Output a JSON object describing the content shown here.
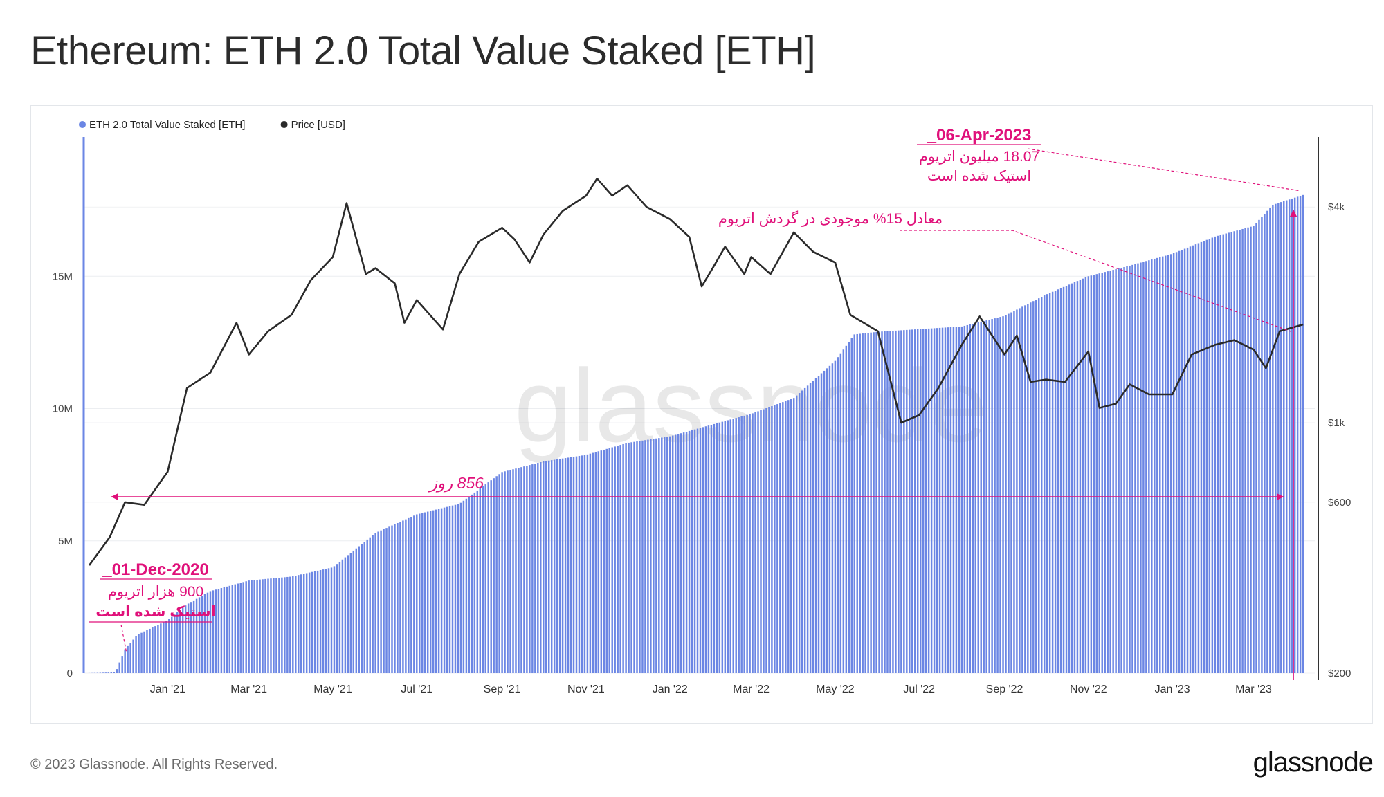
{
  "title": "Ethereum: ETH 2.0 Total Value Staked [ETH]",
  "footer": {
    "copyright": "© 2023 Glassnode. All Rights Reserved.",
    "logo": "glassnode"
  },
  "watermark": "glassnode",
  "colors": {
    "staked": "#6b86e4",
    "price": "#2a2a2a",
    "annotation": "#e0107a",
    "axis_left": "#6b86e4",
    "axis_right": "#333333"
  },
  "chart_data": {
    "type": "bar",
    "title": "Ethereum: ETH 2.0 Total Value Staked [ETH]",
    "legend": [
      {
        "name": "ETH 2.0 Total Value Staked [ETH]",
        "color": "#6b86e4"
      },
      {
        "name": "Price [USD]",
        "color": "#2a2a2a"
      }
    ],
    "legend_placement": "top-left",
    "x_range": [
      "2020-11-01",
      "2023-04-15"
    ],
    "x_ticks": [
      "Jan '21",
      "Mar '21",
      "May '21",
      "Jul '21",
      "Sep '21",
      "Nov '21",
      "Jan '22",
      "Mar '22",
      "May '22",
      "Jul '22",
      "Sep '22",
      "Nov '22",
      "Jan '23",
      "Mar '23"
    ],
    "x_tick_dates": [
      "2021-01-01",
      "2021-03-01",
      "2021-05-01",
      "2021-07-01",
      "2021-09-01",
      "2021-11-01",
      "2022-01-01",
      "2022-03-01",
      "2022-05-01",
      "2022-07-01",
      "2022-09-01",
      "2022-11-01",
      "2023-01-01",
      "2023-03-01"
    ],
    "y_left": {
      "min": 0,
      "max": 20000000,
      "ticks": [
        0,
        5000000,
        10000000,
        15000000
      ],
      "tick_labels": [
        "0",
        "5M",
        "10M",
        "15M"
      ]
    },
    "y_right": {
      "scale": "log",
      "min": 200,
      "max": 6000,
      "ticks": [
        200,
        600,
        1000,
        4000
      ],
      "tick_labels": [
        "$200",
        "$600",
        "$1k",
        "$4k"
      ]
    },
    "grid": true,
    "series": [
      {
        "name": "ETH 2.0 Total Value Staked [ETH]",
        "type": "bar",
        "axis": "left",
        "points": [
          [
            "2020-11-03",
            0
          ],
          [
            "2020-11-24",
            30000
          ],
          [
            "2020-12-01",
            900000
          ],
          [
            "2020-12-10",
            1450000
          ],
          [
            "2021-01-01",
            2000000
          ],
          [
            "2021-01-15",
            2600000
          ],
          [
            "2021-02-01",
            3100000
          ],
          [
            "2021-03-01",
            3500000
          ],
          [
            "2021-04-01",
            3650000
          ],
          [
            "2021-05-01",
            4000000
          ],
          [
            "2021-06-01",
            5300000
          ],
          [
            "2021-07-01",
            6000000
          ],
          [
            "2021-08-01",
            6400000
          ],
          [
            "2021-09-01",
            7600000
          ],
          [
            "2021-10-01",
            8000000
          ],
          [
            "2021-11-01",
            8250000
          ],
          [
            "2021-12-01",
            8700000
          ],
          [
            "2022-01-01",
            8950000
          ],
          [
            "2022-02-01",
            9400000
          ],
          [
            "2022-03-01",
            9800000
          ],
          [
            "2022-04-01",
            10400000
          ],
          [
            "2022-05-01",
            11800000
          ],
          [
            "2022-05-15",
            12800000
          ],
          [
            "2022-06-01",
            12900000
          ],
          [
            "2022-07-01",
            13000000
          ],
          [
            "2022-08-01",
            13100000
          ],
          [
            "2022-09-01",
            13500000
          ],
          [
            "2022-10-01",
            14300000
          ],
          [
            "2022-11-01",
            15000000
          ],
          [
            "2022-12-01",
            15400000
          ],
          [
            "2023-01-01",
            15850000
          ],
          [
            "2023-02-01",
            16500000
          ],
          [
            "2023-03-01",
            16900000
          ],
          [
            "2023-03-15",
            17700000
          ],
          [
            "2023-04-06",
            18070000
          ]
        ]
      },
      {
        "name": "Price [USD]",
        "type": "line",
        "axis": "right",
        "points": [
          [
            "2020-11-05",
            400
          ],
          [
            "2020-11-20",
            480
          ],
          [
            "2020-12-01",
            600
          ],
          [
            "2020-12-15",
            590
          ],
          [
            "2021-01-01",
            730
          ],
          [
            "2021-01-15",
            1250
          ],
          [
            "2021-02-01",
            1380
          ],
          [
            "2021-02-20",
            1900
          ],
          [
            "2021-03-01",
            1550
          ],
          [
            "2021-03-15",
            1800
          ],
          [
            "2021-04-01",
            2000
          ],
          [
            "2021-04-15",
            2500
          ],
          [
            "2021-05-01",
            2900
          ],
          [
            "2021-05-11",
            4100
          ],
          [
            "2021-05-25",
            2600
          ],
          [
            "2021-06-01",
            2700
          ],
          [
            "2021-06-15",
            2450
          ],
          [
            "2021-06-22",
            1900
          ],
          [
            "2021-07-01",
            2200
          ],
          [
            "2021-07-20",
            1820
          ],
          [
            "2021-08-01",
            2600
          ],
          [
            "2021-08-15",
            3200
          ],
          [
            "2021-09-01",
            3500
          ],
          [
            "2021-09-10",
            3250
          ],
          [
            "2021-09-21",
            2800
          ],
          [
            "2021-10-01",
            3350
          ],
          [
            "2021-10-15",
            3900
          ],
          [
            "2021-11-01",
            4300
          ],
          [
            "2021-11-09",
            4800
          ],
          [
            "2021-11-20",
            4300
          ],
          [
            "2021-12-01",
            4600
          ],
          [
            "2021-12-15",
            4000
          ],
          [
            "2022-01-01",
            3700
          ],
          [
            "2022-01-15",
            3300
          ],
          [
            "2022-01-24",
            2400
          ],
          [
            "2022-02-01",
            2700
          ],
          [
            "2022-02-10",
            3100
          ],
          [
            "2022-02-24",
            2600
          ],
          [
            "2022-03-01",
            2900
          ],
          [
            "2022-03-15",
            2600
          ],
          [
            "2022-04-01",
            3400
          ],
          [
            "2022-04-15",
            3000
          ],
          [
            "2022-05-01",
            2800
          ],
          [
            "2022-05-12",
            2000
          ],
          [
            "2022-06-01",
            1800
          ],
          [
            "2022-06-18",
            1000
          ],
          [
            "2022-07-01",
            1050
          ],
          [
            "2022-07-15",
            1250
          ],
          [
            "2022-08-01",
            1650
          ],
          [
            "2022-08-14",
            1980
          ],
          [
            "2022-09-01",
            1550
          ],
          [
            "2022-09-10",
            1750
          ],
          [
            "2022-09-20",
            1300
          ],
          [
            "2022-10-01",
            1320
          ],
          [
            "2022-10-15",
            1300
          ],
          [
            "2022-11-01",
            1580
          ],
          [
            "2022-11-09",
            1100
          ],
          [
            "2022-11-21",
            1130
          ],
          [
            "2022-12-01",
            1280
          ],
          [
            "2022-12-15",
            1200
          ],
          [
            "2023-01-01",
            1200
          ],
          [
            "2023-01-15",
            1550
          ],
          [
            "2023-02-01",
            1650
          ],
          [
            "2023-02-15",
            1700
          ],
          [
            "2023-03-01",
            1600
          ],
          [
            "2023-03-10",
            1420
          ],
          [
            "2023-03-20",
            1800
          ],
          [
            "2023-04-06",
            1880
          ]
        ]
      }
    ],
    "annotations": {
      "end": {
        "date": "06-Apr-2023",
        "line1": "18.07 میلیون اتریوم",
        "line2": "استیک شده است"
      },
      "start": {
        "date": "01-Dec-2020",
        "line1": "900 هزار اتریوم",
        "line2": "استیک شده است"
      },
      "span": {
        "label": "856 روز",
        "from": "2020-12-01",
        "to": "2023-04-06"
      },
      "supply": {
        "label": "معادل 15% موجودی در گردش اتریوم"
      }
    }
  }
}
